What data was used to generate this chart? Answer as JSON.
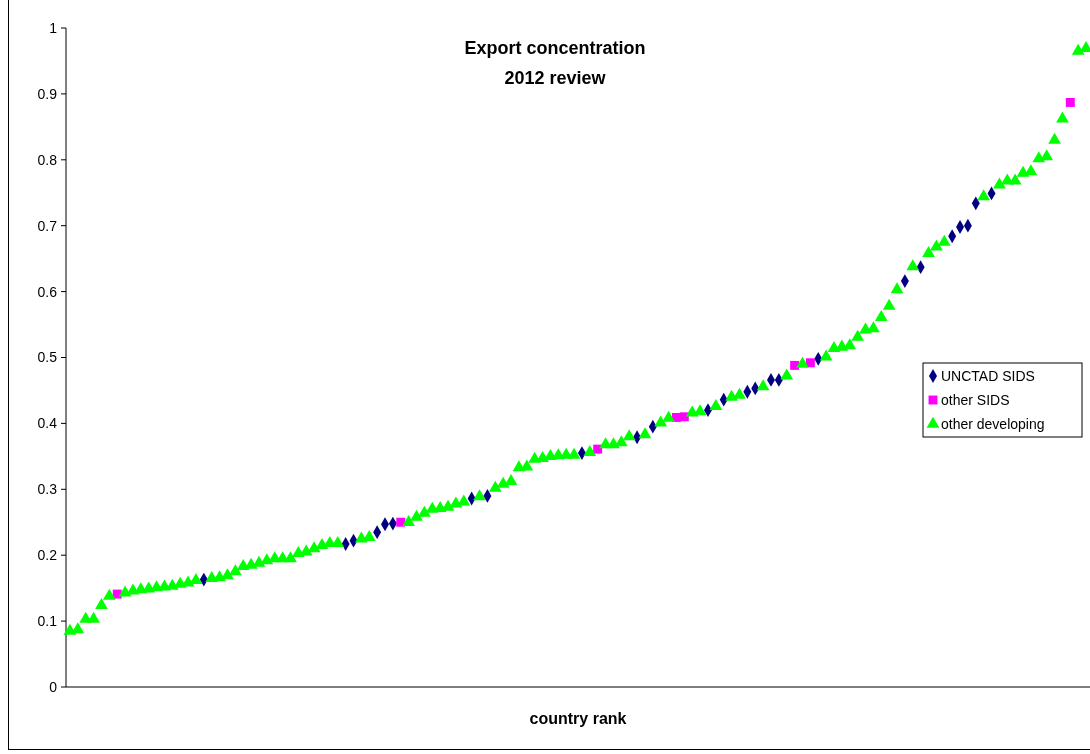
{
  "chart_data": {
    "type": "scatter",
    "title": "Export concentration",
    "subtitle": "2012 review",
    "xlabel": "country rank",
    "categories": [
      null,
      null,
      null,
      null,
      null,
      null,
      null,
      null,
      null,
      null,
      null,
      null,
      null,
      null,
      null,
      null,
      null,
      null,
      null,
      null,
      null,
      null,
      null,
      null,
      null,
      null,
      null,
      null,
      null,
      null,
      null,
      null,
      null,
      null,
      null,
      null,
      null,
      null,
      null,
      null,
      null,
      null,
      null,
      null,
      null,
      null,
      null,
      null,
      null,
      null,
      null,
      null,
      null,
      null,
      null,
      null,
      null,
      null,
      null,
      null,
      null,
      null,
      null,
      null,
      null,
      null,
      null,
      null,
      null,
      null,
      null,
      null,
      null,
      null,
      null,
      null,
      null,
      null,
      null,
      null,
      null,
      null,
      null,
      null,
      null,
      null,
      null,
      null,
      null,
      null,
      null,
      null,
      null,
      null,
      null,
      null,
      null,
      null,
      null,
      null,
      null,
      null,
      null,
      null,
      null,
      null,
      null,
      null,
      null,
      null,
      null,
      null,
      null,
      null,
      null,
      null,
      null,
      null,
      null,
      null,
      null,
      null,
      null,
      null,
      null,
      null,
      null,
      null,
      null,
      null
    ],
    "series": [
      {
        "name": "UNCTAD SIDS",
        "color": "#000080",
        "marker": "diamond",
        "values": [
          null,
          null,
          null,
          null,
          null,
          null,
          null,
          null,
          null,
          null,
          null,
          null,
          null,
          null,
          null,
          null,
          null,
          0.163,
          null,
          null,
          null,
          null,
          null,
          null,
          null,
          null,
          null,
          null,
          null,
          null,
          null,
          null,
          null,
          null,
          null,
          0.217,
          0.222,
          null,
          null,
          0.235,
          0.247,
          0.248,
          null,
          null,
          null,
          null,
          null,
          null,
          null,
          null,
          null,
          0.286,
          null,
          0.29,
          null,
          null,
          null,
          null,
          null,
          null,
          null,
          null,
          null,
          null,
          null,
          0.355,
          null,
          null,
          null,
          null,
          null,
          null,
          0.379,
          null,
          0.395,
          null,
          null,
          null,
          null,
          null,
          null,
          0.42,
          null,
          0.436,
          null,
          null,
          0.448,
          0.453,
          null,
          0.466,
          0.466,
          null,
          null,
          null,
          null,
          0.498,
          null,
          null,
          null,
          null,
          null,
          null,
          null,
          null,
          null,
          null,
          0.616,
          null,
          0.637,
          null,
          null,
          null,
          0.684,
          0.698,
          0.7,
          0.734,
          null,
          0.749,
          null,
          null,
          null,
          null,
          null,
          null,
          null,
          null,
          null,
          null,
          null,
          null
        ]
      },
      {
        "name": "other SIDS",
        "color": "#ff00ff",
        "marker": "square",
        "values": [
          null,
          null,
          null,
          null,
          null,
          null,
          0.141,
          null,
          null,
          null,
          null,
          null,
          null,
          null,
          null,
          null,
          null,
          null,
          null,
          null,
          null,
          null,
          null,
          null,
          null,
          null,
          null,
          null,
          null,
          null,
          null,
          null,
          null,
          null,
          null,
          null,
          null,
          null,
          null,
          null,
          null,
          null,
          0.25,
          null,
          null,
          null,
          null,
          null,
          null,
          null,
          null,
          null,
          null,
          null,
          null,
          null,
          null,
          null,
          null,
          null,
          null,
          null,
          null,
          null,
          null,
          null,
          null,
          0.361,
          null,
          null,
          null,
          null,
          null,
          null,
          null,
          null,
          null,
          0.409,
          0.41,
          null,
          null,
          null,
          null,
          null,
          null,
          null,
          null,
          null,
          null,
          null,
          null,
          null,
          0.488,
          null,
          0.492,
          null,
          null,
          null,
          null,
          null,
          null,
          null,
          null,
          null,
          null,
          null,
          null,
          null,
          null,
          null,
          null,
          null,
          null,
          null,
          null,
          null,
          null,
          null,
          null,
          null,
          null,
          null,
          null,
          null,
          null,
          null,
          null,
          0.887,
          null,
          null
        ]
      },
      {
        "name": "other developing",
        "color": "#00ff00",
        "marker": "triangle",
        "values": [
          0.085,
          0.087,
          0.103,
          0.103,
          0.124,
          0.138,
          null,
          0.143,
          0.146,
          0.148,
          0.149,
          0.151,
          0.152,
          0.153,
          0.156,
          0.158,
          0.162,
          null,
          0.165,
          0.166,
          0.169,
          0.175,
          0.183,
          0.185,
          0.188,
          0.192,
          0.195,
          0.195,
          0.195,
          0.203,
          0.205,
          0.21,
          0.215,
          0.218,
          0.218,
          null,
          null,
          0.225,
          0.227,
          null,
          null,
          null,
          null,
          0.25,
          0.258,
          0.264,
          0.27,
          0.271,
          0.273,
          0.278,
          0.281,
          null,
          0.289,
          null,
          0.302,
          0.308,
          0.312,
          0.333,
          0.334,
          0.346,
          0.347,
          0.35,
          0.351,
          0.352,
          0.352,
          null,
          0.356,
          null,
          0.368,
          0.368,
          0.371,
          0.38,
          null,
          0.383,
          null,
          0.401,
          0.408,
          null,
          null,
          0.416,
          0.418,
          null,
          0.426,
          null,
          0.44,
          0.443,
          null,
          null,
          0.456,
          null,
          null,
          0.472,
          null,
          0.49,
          null,
          null,
          0.501,
          0.514,
          0.516,
          0.518,
          0.531,
          0.542,
          0.544,
          0.561,
          0.578,
          0.603,
          null,
          0.638,
          null,
          0.658,
          0.668,
          0.675,
          null,
          null,
          null,
          null,
          0.744,
          null,
          0.762,
          0.768,
          0.768,
          0.78,
          0.782,
          0.802,
          0.805,
          0.83,
          0.862,
          null,
          0.965,
          0.969
        ]
      }
    ],
    "ylim": [
      0,
      1
    ],
    "yticks": [
      0,
      0.1,
      0.2,
      0.3,
      0.4,
      0.5,
      0.6,
      0.7,
      0.8,
      0.9,
      1
    ],
    "tick_labels": "y",
    "grid": false,
    "legend": "right"
  }
}
